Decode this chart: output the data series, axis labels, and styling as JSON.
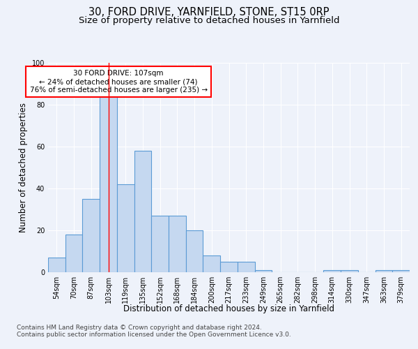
{
  "title": "30, FORD DRIVE, YARNFIELD, STONE, ST15 0RP",
  "subtitle": "Size of property relative to detached houses in Yarnfield",
  "xlabel": "Distribution of detached houses by size in Yarnfield",
  "ylabel": "Number of detached properties",
  "bins": [
    "54sqm",
    "70sqm",
    "87sqm",
    "103sqm",
    "119sqm",
    "135sqm",
    "152sqm",
    "168sqm",
    "184sqm",
    "200sqm",
    "217sqm",
    "233sqm",
    "249sqm",
    "265sqm",
    "282sqm",
    "298sqm",
    "314sqm",
    "330sqm",
    "347sqm",
    "363sqm",
    "379sqm"
  ],
  "values": [
    7,
    18,
    35,
    84,
    42,
    58,
    27,
    27,
    20,
    8,
    5,
    5,
    1,
    0,
    0,
    0,
    1,
    1,
    0,
    1,
    1
  ],
  "bar_color": "#c5d8f0",
  "bar_edge_color": "#5b9bd5",
  "red_line_index": 3,
  "annotation_line1": "30 FORD DRIVE: 107sqm",
  "annotation_line2": "← 24% of detached houses are smaller (74)",
  "annotation_line3": "76% of semi-detached houses are larger (235) →",
  "annotation_box_color": "white",
  "annotation_box_edge": "red",
  "ylim": [
    0,
    100
  ],
  "yticks": [
    0,
    20,
    40,
    60,
    80,
    100
  ],
  "footer1": "Contains HM Land Registry data © Crown copyright and database right 2024.",
  "footer2": "Contains public sector information licensed under the Open Government Licence v3.0.",
  "background_color": "#eef2fa",
  "plot_background": "#eef2fa",
  "grid_color": "white",
  "title_fontsize": 10.5,
  "subtitle_fontsize": 9.5,
  "tick_fontsize": 7,
  "ylabel_fontsize": 8.5,
  "xlabel_fontsize": 8.5,
  "footer_fontsize": 6.5,
  "annotation_fontsize": 7.5
}
